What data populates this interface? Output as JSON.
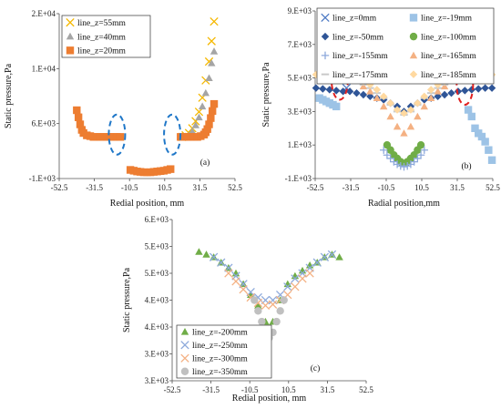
{
  "figure": {
    "panels": [
      "a",
      "b",
      "c"
    ]
  },
  "chart_data": [
    {
      "type": "scatter",
      "panel_label": "(a)",
      "title": "",
      "xlabel": "Redial position, mm",
      "ylabel": "Static pressure,Pa",
      "xlim": [
        -52.5,
        52.5
      ],
      "ylim": [
        -1000,
        20000
      ],
      "xticks": [
        -52.5,
        -31.5,
        -10.5,
        10.5,
        31.5,
        52.5
      ],
      "xtick_labels": [
        "-52.5",
        "-31.5",
        "-10.5",
        "10.5",
        "31.5",
        "52.5"
      ],
      "yticks": [
        -1000,
        6000,
        13000,
        20000
      ],
      "ytick_labels": [
        "-1.E+03",
        "6.E+03",
        "1.E+04",
        "2.E+04"
      ],
      "legend_position": "top-left",
      "series": [
        {
          "name": "line_z=55mm",
          "marker": "x",
          "color": "#f5b800",
          "x": [
            21,
            23,
            25,
            27,
            29,
            31,
            33,
            35,
            37,
            38.5,
            40
          ],
          "y": [
            4300,
            4500,
            4800,
            5400,
            6300,
            7500,
            9300,
            11500,
            13900,
            16500,
            19000
          ]
        },
        {
          "name": "line_z=40mm",
          "marker": "triangle",
          "color": "#a5a5a5",
          "x": [
            21,
            23,
            25,
            27,
            29,
            31,
            33,
            35,
            37,
            38.5,
            40
          ],
          "y": [
            4200,
            4300,
            4500,
            5000,
            5800,
            6800,
            8200,
            9900,
            11800,
            13700,
            15200
          ]
        },
        {
          "name": "line_z=20mm",
          "marker": "square",
          "color": "#ed7d31",
          "x": [
            -42,
            -41,
            -40,
            -39,
            -38,
            -36,
            -34,
            -32,
            -30,
            -28,
            -26,
            -24,
            -22,
            -20,
            -18,
            -16,
            -10,
            -8,
            -6,
            -4,
            -2,
            0,
            2,
            4,
            6,
            8,
            10,
            12,
            14,
            20,
            22,
            24,
            26,
            28,
            30,
            32,
            34,
            35,
            36,
            37,
            38,
            39,
            40
          ],
          "y": [
            7700,
            6800,
            5900,
            5200,
            4800,
            4500,
            4400,
            4300,
            4300,
            4300,
            4300,
            4300,
            4300,
            4300,
            4300,
            4300,
            100,
            0,
            -100,
            -150,
            -200,
            -200,
            -200,
            -150,
            -100,
            -50,
            0,
            100,
            200,
            4300,
            4300,
            4300,
            4300,
            4300,
            4300,
            4400,
            4600,
            4900,
            5300,
            5900,
            6700,
            7600,
            8500
          ]
        }
      ],
      "annotations": [
        {
          "shape": "dashed-ellipse",
          "color": "#1f77c8",
          "cx": -18,
          "cy": 4600
        },
        {
          "shape": "dashed-ellipse",
          "color": "#1f77c8",
          "cx": 15,
          "cy": 4600
        }
      ]
    },
    {
      "type": "scatter",
      "panel_label": "(b)",
      "title": "",
      "xlabel": "Radial position,mm",
      "ylabel": "Static pressure,Pa",
      "xlim": [
        -52.5,
        52.5
      ],
      "ylim": [
        -1000,
        9000
      ],
      "xticks": [
        -52.5,
        -31.5,
        -10.5,
        10.5,
        31.5,
        52.5
      ],
      "xtick_labels": [
        "-52.5",
        "-31.5",
        "-10.5",
        "10.5",
        "31.5",
        "52.5"
      ],
      "yticks": [
        -1000,
        1000,
        3000,
        5000,
        7000,
        9000
      ],
      "ytick_labels": [
        "-1.E+03",
        "1.E+03",
        "3.E+03",
        "5.E+03",
        "7.E+03",
        "9.E+03"
      ],
      "legend_position": "top",
      "series": [
        {
          "name": "line_z=0mm",
          "marker": "x",
          "color": "#4f7bc4",
          "x": [
            -38,
            -37,
            -36,
            -35,
            -34,
            36,
            37,
            38
          ],
          "y": [
            7400,
            6800,
            5600,
            4900,
            4400,
            6300,
            5700,
            5300
          ]
        },
        {
          "name": "line_z=-19mm",
          "marker": "square",
          "color": "#9dc3e6",
          "x": [
            -50,
            -48,
            -46,
            -44,
            -42,
            -40,
            38,
            40,
            42,
            44,
            46,
            48,
            50,
            52
          ],
          "y": [
            3800,
            3700,
            3600,
            3500,
            3400,
            3300,
            3100,
            2700,
            2000,
            1700,
            1500,
            1200,
            700,
            100
          ]
        },
        {
          "name": "line_z=-50mm",
          "marker": "diamond",
          "color": "#2f5597",
          "x": [
            -52,
            -48,
            -44,
            -40,
            -36,
            -32,
            -28,
            -24,
            -20,
            -16,
            -12,
            -8,
            -4,
            0,
            4,
            8,
            12,
            16,
            20,
            24,
            28,
            32,
            36,
            40,
            44,
            48,
            52
          ],
          "y": [
            4400,
            4350,
            4300,
            4250,
            4200,
            4200,
            4100,
            4000,
            3900,
            3800,
            3700,
            3500,
            3300,
            3000,
            3300,
            3500,
            3700,
            3800,
            3900,
            4000,
            4100,
            4200,
            4250,
            4300,
            4350,
            4400,
            4400
          ]
        },
        {
          "name": "line_z=-100mm",
          "marker": "circle",
          "color": "#70ad47",
          "x": [
            -10,
            -8,
            -6,
            -4,
            -2,
            0,
            2,
            4,
            6,
            8,
            10
          ],
          "y": [
            1000,
            700,
            400,
            200,
            0,
            -100,
            0,
            200,
            400,
            700,
            1000
          ]
        },
        {
          "name": "line_z=-155mm",
          "marker": "plus",
          "color": "#8da9db",
          "x": [
            -12,
            -10,
            -8,
            -6,
            -4,
            -2,
            0,
            2,
            4,
            6,
            8,
            10,
            12
          ],
          "y": [
            700,
            400,
            200,
            0,
            -150,
            -250,
            -300,
            -250,
            -150,
            0,
            200,
            400,
            700
          ]
        },
        {
          "name": "line_z=-165mm",
          "marker": "triangle",
          "color": "#f4b183",
          "x": [
            -24,
            -20,
            -16,
            -12,
            -8,
            -4,
            0,
            4,
            8,
            12,
            16,
            20,
            24
          ],
          "y": [
            4500,
            4200,
            3800,
            3300,
            2700,
            2100,
            1700,
            2100,
            2700,
            3300,
            3800,
            4200,
            4500
          ]
        },
        {
          "name": "line_z=-175mm",
          "marker": "dash",
          "color": "#c9c9c9",
          "x": [
            -24,
            -20,
            -16,
            -12,
            -8,
            -4,
            0,
            4,
            8,
            12,
            16,
            20,
            24
          ],
          "y": [
            4600,
            4400,
            4100,
            3800,
            3400,
            3000,
            2800,
            3000,
            3400,
            3800,
            4100,
            4400,
            4600
          ]
        },
        {
          "name": "line_z=-185mm",
          "marker": "diamond",
          "color": "#ffd9a0",
          "x": [
            -52,
            -48,
            -44,
            -40,
            -36,
            -32,
            -28,
            -24,
            -20,
            -16,
            -12,
            -8,
            -4,
            0,
            4,
            8,
            12,
            16,
            20,
            24,
            28,
            32,
            36,
            40,
            44,
            48,
            52
          ],
          "y": [
            5200,
            5200,
            5200,
            5200,
            5200,
            5100,
            5000,
            4800,
            4600,
            4300,
            3900,
            3500,
            3100,
            2900,
            3100,
            3500,
            3900,
            4300,
            4600,
            4800,
            5000,
            5100,
            5200,
            5200,
            5200,
            5200,
            5200
          ]
        }
      ],
      "annotations": [
        {
          "shape": "dashed-ellipse",
          "color": "#e02020",
          "cx": -38,
          "cy": 4900
        },
        {
          "shape": "dashed-ellipse",
          "color": "#e02020",
          "cx": 36,
          "cy": 4600
        }
      ]
    },
    {
      "type": "scatter",
      "panel_label": "(c)",
      "title": "",
      "xlabel": "Redial position, mm",
      "ylabel": "Static pressure,Pa",
      "xlim": [
        -52.5,
        52.5
      ],
      "ylim": [
        3000,
        6000
      ],
      "xticks": [
        -52.5,
        -31.5,
        -10.5,
        10.5,
        31.5,
        52.5
      ],
      "xtick_labels": [
        "-52.5",
        "-31.5",
        "-10.5",
        "10.5",
        "31.5",
        "52.5"
      ],
      "yticks": [
        3000,
        3500,
        4000,
        4500,
        5000,
        5500,
        6000
      ],
      "ytick_labels": [
        "3.E+03",
        "3.E+03",
        "4.E+03",
        "4.E+03",
        "5.E+03",
        "5.E+03",
        "6.E+03"
      ],
      "legend_position": "bottom-left",
      "series": [
        {
          "name": "line_z=-200mm",
          "marker": "triangle",
          "color": "#70ad47",
          "x": [
            -38,
            -34,
            -30,
            -26,
            -22,
            -18,
            -14,
            -10,
            -6,
            -2,
            2,
            6,
            10,
            14,
            18,
            22,
            26,
            30,
            34,
            38
          ],
          "y": [
            5400,
            5350,
            5300,
            5200,
            5100,
            5000,
            4800,
            4600,
            4400,
            4100,
            4100,
            4500,
            4800,
            4950,
            5050,
            5150,
            5200,
            5300,
            5350,
            5300
          ]
        },
        {
          "name": "line_z=-250mm",
          "marker": "x",
          "color": "#8da9db",
          "x": [
            -30,
            -26,
            -22,
            -18,
            -14,
            -10,
            -6,
            -2,
            2,
            6,
            10,
            14,
            18,
            22,
            26,
            30,
            34
          ],
          "y": [
            5300,
            5200,
            5100,
            4950,
            4800,
            4650,
            4550,
            4500,
            4500,
            4600,
            4750,
            4900,
            5000,
            5100,
            5200,
            5300,
            5350
          ]
        },
        {
          "name": "line_z=-300mm",
          "marker": "x",
          "color": "#f4b183",
          "x": [
            -22,
            -18,
            -14,
            -10,
            -6,
            -2,
            2,
            6,
            10,
            14,
            18,
            22
          ],
          "y": [
            5000,
            4850,
            4700,
            4550,
            4450,
            4400,
            4420,
            4500,
            4600,
            4750,
            4900,
            5000
          ]
        },
        {
          "name": "line_z=-350mm",
          "marker": "circle",
          "color": "#c0c0c0",
          "x": [
            -8,
            -6,
            -4,
            -2,
            0,
            2,
            4,
            6,
            8
          ],
          "y": [
            4500,
            4300,
            4100,
            3900,
            3800,
            3900,
            4100,
            4300,
            4500
          ]
        }
      ]
    }
  ]
}
